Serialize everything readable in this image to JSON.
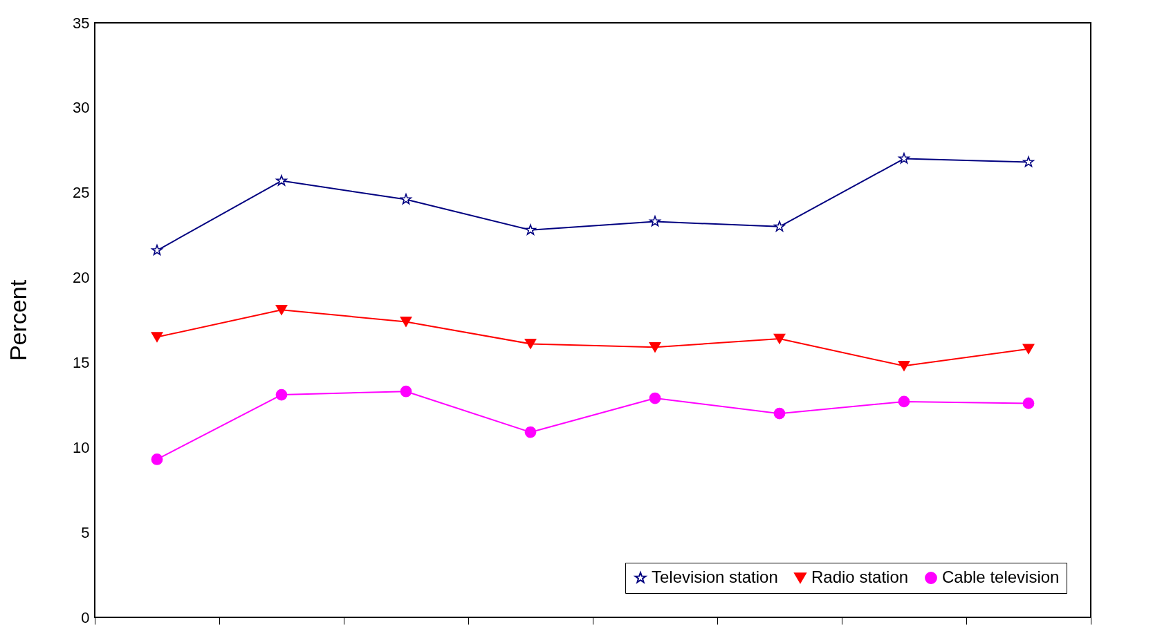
{
  "chart_data": {
    "type": "line",
    "ylabel": "Percent",
    "categories": [
      null,
      null,
      null,
      null,
      null,
      null,
      null,
      null
    ],
    "series": [
      {
        "name": "Television station",
        "color": "#000080",
        "marker": "star",
        "values": [
          21.6,
          25.7,
          24.6,
          22.8,
          23.3,
          23.0,
          27.0,
          26.8
        ]
      },
      {
        "name": "Radio station",
        "color": "#ff0000",
        "marker": "triangle",
        "values": [
          16.5,
          18.1,
          17.4,
          16.1,
          15.9,
          16.4,
          14.8,
          15.8
        ]
      },
      {
        "name": "Cable television",
        "color": "#ff00ff",
        "marker": "circle",
        "values": [
          9.3,
          13.1,
          13.3,
          10.9,
          12.9,
          12.0,
          12.7,
          12.6
        ]
      }
    ],
    "ylim": [
      0,
      35
    ],
    "yticks": [
      0,
      5,
      10,
      15,
      20,
      25,
      30,
      35
    ],
    "grid": false,
    "legend": "bottom right",
    "tick_labels": "y"
  }
}
